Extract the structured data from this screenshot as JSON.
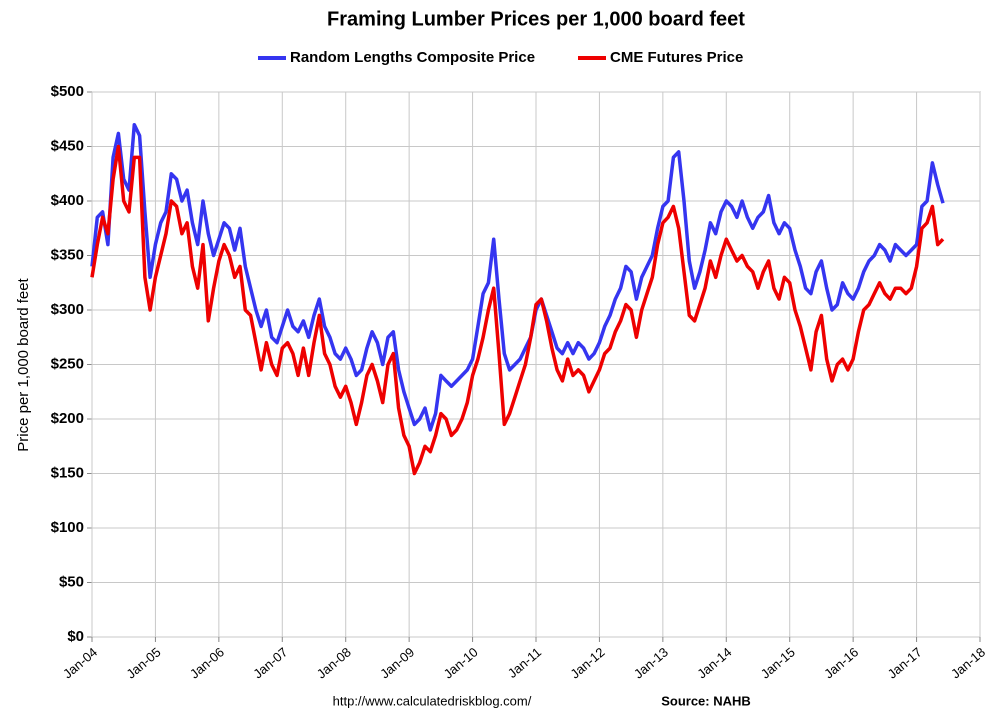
{
  "chart_data": {
    "type": "line",
    "title": "Framing Lumber Prices per 1,000 board feet",
    "ylabel": "Price per 1,000 board feet",
    "source_url": "http://www.calculatedriskblog.com/",
    "source": "Source: NAHB",
    "grid": true,
    "legend": "top",
    "x": [
      "2004-01",
      "2004-02",
      "2004-03",
      "2004-04",
      "2004-05",
      "2004-06",
      "2004-07",
      "2004-08",
      "2004-09",
      "2004-10",
      "2004-11",
      "2004-12",
      "2005-01",
      "2005-02",
      "2005-03",
      "2005-04",
      "2005-05",
      "2005-06",
      "2005-07",
      "2005-08",
      "2005-09",
      "2005-10",
      "2005-11",
      "2005-12",
      "2006-01",
      "2006-02",
      "2006-03",
      "2006-04",
      "2006-05",
      "2006-06",
      "2006-07",
      "2006-08",
      "2006-09",
      "2006-10",
      "2006-11",
      "2006-12",
      "2007-01",
      "2007-02",
      "2007-03",
      "2007-04",
      "2007-05",
      "2007-06",
      "2007-07",
      "2007-08",
      "2007-09",
      "2007-10",
      "2007-11",
      "2007-12",
      "2008-01",
      "2008-02",
      "2008-03",
      "2008-04",
      "2008-05",
      "2008-06",
      "2008-07",
      "2008-08",
      "2008-09",
      "2008-10",
      "2008-11",
      "2008-12",
      "2009-01",
      "2009-02",
      "2009-03",
      "2009-04",
      "2009-05",
      "2009-06",
      "2009-07",
      "2009-08",
      "2009-09",
      "2009-10",
      "2009-11",
      "2009-12",
      "2010-01",
      "2010-02",
      "2010-03",
      "2010-04",
      "2010-05",
      "2010-06",
      "2010-07",
      "2010-08",
      "2010-09",
      "2010-10",
      "2010-11",
      "2010-12",
      "2011-01",
      "2011-02",
      "2011-03",
      "2011-04",
      "2011-05",
      "2011-06",
      "2011-07",
      "2011-08",
      "2011-09",
      "2011-10",
      "2011-11",
      "2011-12",
      "2012-01",
      "2012-02",
      "2012-03",
      "2012-04",
      "2012-05",
      "2012-06",
      "2012-07",
      "2012-08",
      "2012-09",
      "2012-10",
      "2012-11",
      "2012-12",
      "2013-01",
      "2013-02",
      "2013-03",
      "2013-04",
      "2013-05",
      "2013-06",
      "2013-07",
      "2013-08",
      "2013-09",
      "2013-10",
      "2013-11",
      "2013-12",
      "2014-01",
      "2014-02",
      "2014-03",
      "2014-04",
      "2014-05",
      "2014-06",
      "2014-07",
      "2014-08",
      "2014-09",
      "2014-10",
      "2014-11",
      "2014-12",
      "2015-01",
      "2015-02",
      "2015-03",
      "2015-04",
      "2015-05",
      "2015-06",
      "2015-07",
      "2015-08",
      "2015-09",
      "2015-10",
      "2015-11",
      "2015-12",
      "2016-01",
      "2016-02",
      "2016-03",
      "2016-04",
      "2016-05",
      "2016-06",
      "2016-07",
      "2016-08",
      "2016-09",
      "2016-10",
      "2016-11",
      "2016-12",
      "2017-01",
      "2017-02",
      "2017-03",
      "2017-04",
      "2017-05",
      "2017-06"
    ],
    "series": [
      {
        "name": "Random Lengths Composite Price",
        "color": "#3535f0",
        "values": [
          340,
          385,
          390,
          360,
          440,
          462,
          420,
          410,
          470,
          460,
          390,
          330,
          360,
          380,
          390,
          425,
          420,
          400,
          410,
          380,
          360,
          400,
          370,
          350,
          365,
          380,
          375,
          355,
          375,
          340,
          320,
          300,
          285,
          300,
          275,
          270,
          285,
          300,
          285,
          280,
          290,
          275,
          295,
          310,
          285,
          275,
          260,
          255,
          265,
          255,
          240,
          245,
          265,
          280,
          270,
          250,
          275,
          280,
          245,
          225,
          210,
          195,
          200,
          210,
          190,
          205,
          240,
          235,
          230,
          235,
          240,
          245,
          255,
          285,
          315,
          325,
          365,
          310,
          260,
          245,
          250,
          255,
          265,
          275,
          300,
          310,
          295,
          280,
          265,
          260,
          270,
          260,
          270,
          265,
          255,
          260,
          270,
          285,
          295,
          310,
          320,
          340,
          335,
          310,
          330,
          340,
          350,
          375,
          395,
          400,
          440,
          445,
          400,
          345,
          320,
          335,
          355,
          380,
          370,
          390,
          400,
          395,
          385,
          400,
          385,
          375,
          385,
          390,
          405,
          380,
          370,
          380,
          375,
          355,
          340,
          320,
          315,
          335,
          345,
          320,
          300,
          305,
          325,
          315,
          310,
          320,
          335,
          345,
          350,
          360,
          355,
          345,
          360,
          355,
          350,
          355,
          360,
          395,
          400,
          435,
          415,
          398
        ]
      },
      {
        "name": "CME Futures Price",
        "color": "#ee0000",
        "values": [
          330,
          360,
          385,
          370,
          420,
          450,
          400,
          390,
          440,
          440,
          330,
          300,
          330,
          350,
          370,
          400,
          395,
          370,
          380,
          340,
          320,
          360,
          290,
          320,
          345,
          360,
          350,
          330,
          340,
          300,
          295,
          270,
          245,
          270,
          250,
          240,
          265,
          270,
          260,
          240,
          265,
          240,
          270,
          295,
          260,
          250,
          230,
          220,
          230,
          215,
          195,
          215,
          240,
          250,
          235,
          215,
          250,
          260,
          210,
          185,
          175,
          150,
          160,
          175,
          170,
          185,
          205,
          200,
          185,
          190,
          200,
          215,
          240,
          255,
          275,
          300,
          320,
          260,
          195,
          205,
          220,
          235,
          250,
          275,
          305,
          310,
          290,
          265,
          245,
          235,
          255,
          240,
          245,
          240,
          225,
          235,
          245,
          260,
          265,
          280,
          290,
          305,
          300,
          275,
          300,
          315,
          330,
          360,
          380,
          385,
          395,
          375,
          335,
          295,
          290,
          305,
          320,
          345,
          330,
          350,
          365,
          355,
          345,
          350,
          340,
          335,
          320,
          335,
          345,
          320,
          310,
          330,
          325,
          300,
          285,
          265,
          245,
          280,
          295,
          255,
          235,
          250,
          255,
          245,
          255,
          280,
          300,
          305,
          315,
          325,
          315,
          310,
          320,
          320,
          315,
          320,
          340,
          375,
          380,
          395,
          360,
          365
        ]
      }
    ],
    "xlim": [
      "2004-01",
      "2018-01"
    ],
    "xticks": [
      {
        "value": "2004-01",
        "label": "Jan-04"
      },
      {
        "value": "2005-01",
        "label": "Jan-05"
      },
      {
        "value": "2006-01",
        "label": "Jan-06"
      },
      {
        "value": "2007-01",
        "label": "Jan-07"
      },
      {
        "value": "2008-01",
        "label": "Jan-08"
      },
      {
        "value": "2009-01",
        "label": "Jan-09"
      },
      {
        "value": "2010-01",
        "label": "Jan-10"
      },
      {
        "value": "2011-01",
        "label": "Jan-11"
      },
      {
        "value": "2012-01",
        "label": "Jan-12"
      },
      {
        "value": "2013-01",
        "label": "Jan-13"
      },
      {
        "value": "2014-01",
        "label": "Jan-14"
      },
      {
        "value": "2015-01",
        "label": "Jan-15"
      },
      {
        "value": "2016-01",
        "label": "Jan-16"
      },
      {
        "value": "2017-01",
        "label": "Jan-17"
      },
      {
        "value": "2018-01",
        "label": "Jan-18"
      }
    ],
    "ylim": [
      0,
      500
    ],
    "yticks": [
      {
        "value": 0,
        "label": "$0"
      },
      {
        "value": 50,
        "label": "$50"
      },
      {
        "value": 100,
        "label": "$100"
      },
      {
        "value": 150,
        "label": "$150"
      },
      {
        "value": 200,
        "label": "$200"
      },
      {
        "value": 250,
        "label": "$250"
      },
      {
        "value": 300,
        "label": "$300"
      },
      {
        "value": 350,
        "label": "$350"
      },
      {
        "value": 400,
        "label": "$400"
      },
      {
        "value": 450,
        "label": "$450"
      },
      {
        "value": 500,
        "label": "$500"
      }
    ]
  }
}
